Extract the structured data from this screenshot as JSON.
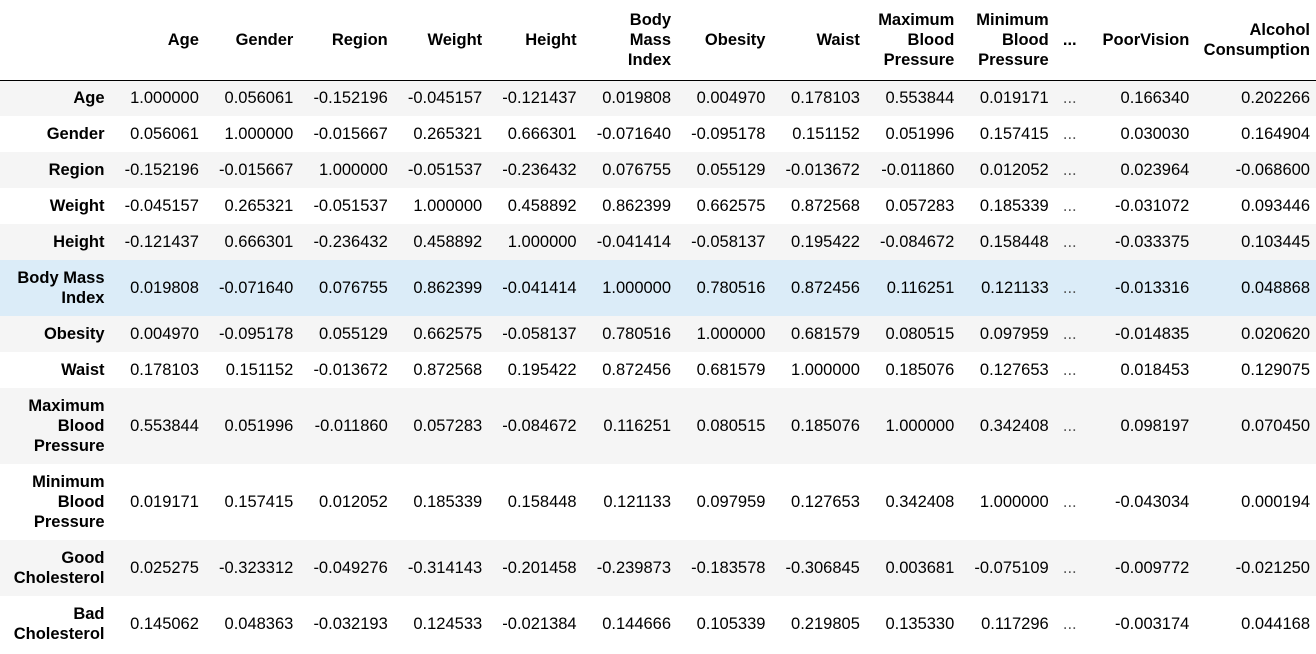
{
  "table": {
    "columns": [
      "Age",
      "Gender",
      "Region",
      "Weight",
      "Height",
      "Body Mass Index",
      "Obesity",
      "Waist",
      "Maximum Blood Pressure",
      "Minimum Blood Pressure",
      "...",
      "PoorVision",
      "Alcohol Consumption"
    ],
    "rows": [
      {
        "label": "Age",
        "values": [
          "1.000000",
          "0.056061",
          "-0.152196",
          "-0.045157",
          "-0.121437",
          "0.019808",
          "0.004970",
          "0.178103",
          "0.553844",
          "0.019171",
          "...",
          "0.166340",
          "0.202266"
        ]
      },
      {
        "label": "Gender",
        "values": [
          "0.056061",
          "1.000000",
          "-0.015667",
          "0.265321",
          "0.666301",
          "-0.071640",
          "-0.095178",
          "0.151152",
          "0.051996",
          "0.157415",
          "...",
          "0.030030",
          "0.164904"
        ]
      },
      {
        "label": "Region",
        "values": [
          "-0.152196",
          "-0.015667",
          "1.000000",
          "-0.051537",
          "-0.236432",
          "0.076755",
          "0.055129",
          "-0.013672",
          "-0.011860",
          "0.012052",
          "...",
          "0.023964",
          "-0.068600"
        ]
      },
      {
        "label": "Weight",
        "values": [
          "-0.045157",
          "0.265321",
          "-0.051537",
          "1.000000",
          "0.458892",
          "0.862399",
          "0.662575",
          "0.872568",
          "0.057283",
          "0.185339",
          "...",
          "-0.031072",
          "0.093446"
        ]
      },
      {
        "label": "Height",
        "values": [
          "-0.121437",
          "0.666301",
          "-0.236432",
          "0.458892",
          "1.000000",
          "-0.041414",
          "-0.058137",
          "0.195422",
          "-0.084672",
          "0.158448",
          "...",
          "-0.033375",
          "0.103445"
        ]
      },
      {
        "label": "Body Mass Index",
        "values": [
          "0.019808",
          "-0.071640",
          "0.076755",
          "0.862399",
          "-0.041414",
          "1.000000",
          "0.780516",
          "0.872456",
          "0.116251",
          "0.121133",
          "...",
          "-0.013316",
          "0.048868"
        ]
      },
      {
        "label": "Obesity",
        "values": [
          "0.004970",
          "-0.095178",
          "0.055129",
          "0.662575",
          "-0.058137",
          "0.780516",
          "1.000000",
          "0.681579",
          "0.080515",
          "0.097959",
          "...",
          "-0.014835",
          "0.020620"
        ]
      },
      {
        "label": "Waist",
        "values": [
          "0.178103",
          "0.151152",
          "-0.013672",
          "0.872568",
          "0.195422",
          "0.872456",
          "0.681579",
          "1.000000",
          "0.185076",
          "0.127653",
          "...",
          "0.018453",
          "0.129075"
        ]
      },
      {
        "label": "Maximum Blood Pressure",
        "values": [
          "0.553844",
          "0.051996",
          "-0.011860",
          "0.057283",
          "-0.084672",
          "0.116251",
          "0.080515",
          "0.185076",
          "1.000000",
          "0.342408",
          "...",
          "0.098197",
          "0.070450"
        ]
      },
      {
        "label": "Minimum Blood Pressure",
        "values": [
          "0.019171",
          "0.157415",
          "0.012052",
          "0.185339",
          "0.158448",
          "0.121133",
          "0.097959",
          "0.127653",
          "0.342408",
          "1.000000",
          "...",
          "-0.043034",
          "0.000194"
        ]
      },
      {
        "label": "Good Cholesterol",
        "values": [
          "0.025275",
          "-0.323312",
          "-0.049276",
          "-0.314143",
          "-0.201458",
          "-0.239873",
          "-0.183578",
          "-0.306845",
          "0.003681",
          "-0.075109",
          "...",
          "-0.009772",
          "-0.021250"
        ]
      },
      {
        "label": "Bad Cholesterol",
        "values": [
          "0.145062",
          "0.048363",
          "-0.032193",
          "0.124533",
          "-0.021384",
          "0.144666",
          "0.105339",
          "0.219805",
          "0.135330",
          "0.117296",
          "...",
          "-0.003174",
          "0.044168"
        ]
      }
    ]
  },
  "colors": {
    "stripe": "#f5f5f5",
    "hover_row": "#dbecf8",
    "header_rule": "#000000"
  }
}
